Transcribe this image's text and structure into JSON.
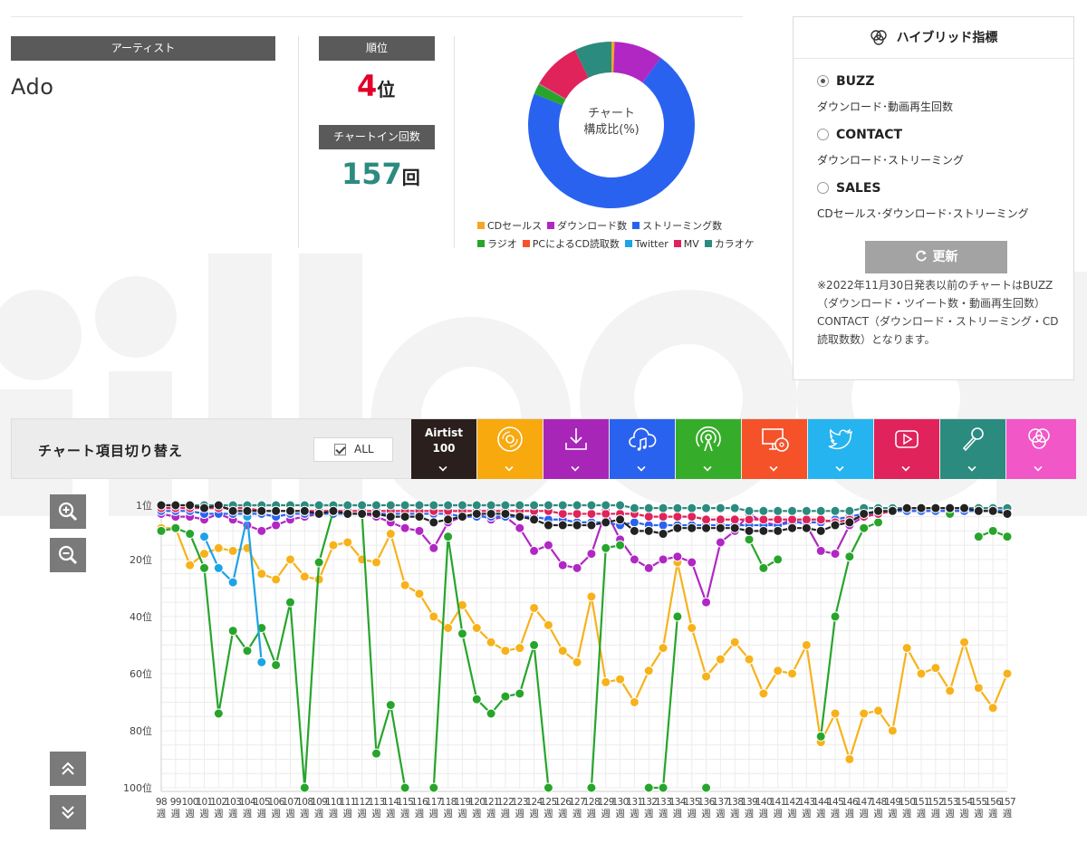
{
  "artist": {
    "label": "アーティスト",
    "name": "Ado"
  },
  "rank": {
    "label": "順位",
    "value": "4",
    "unit": "位"
  },
  "chartin": {
    "label": "チャートイン回数",
    "value": "157",
    "unit": "回"
  },
  "donut": {
    "center_line1": "チャート",
    "center_line2": "構成比(%)",
    "slices": [
      {
        "name": "CDセールス",
        "value": 0.6,
        "color": "#f5a623"
      },
      {
        "name": "ダウンロード数",
        "value": 9.5,
        "color": "#b127c4"
      },
      {
        "name": "ストリーミング数",
        "value": 71,
        "color": "#2a62f0"
      },
      {
        "name": "ラジオ",
        "value": 2,
        "color": "#27a52b"
      },
      {
        "name": "PCによるCD読取数",
        "value": 0.1,
        "color": "#f5522a"
      },
      {
        "name": "Twitter",
        "value": 0.1,
        "color": "#1ea3e6"
      },
      {
        "name": "MV",
        "value": 9.5,
        "color": "#e0235a"
      },
      {
        "name": "カラオケ",
        "value": 7.2,
        "color": "#2b8b7f"
      }
    ],
    "legend_row1": [
      {
        "name": "CDセールス",
        "color": "#f5a623"
      },
      {
        "name": "ダウンロード数",
        "color": "#b127c4"
      },
      {
        "name": "ストリーミング数",
        "color": "#2a62f0"
      }
    ],
    "legend_row2": [
      {
        "name": "ラジオ",
        "color": "#27a52b"
      },
      {
        "name": "PCによるCD読取数",
        "color": "#f5522a"
      },
      {
        "name": "Twitter",
        "color": "#1ea3e6"
      },
      {
        "name": "MV",
        "color": "#e0235a"
      },
      {
        "name": "カラオケ",
        "color": "#2b8b7f"
      }
    ]
  },
  "hybrid": {
    "title": "ハイブリッド指標",
    "options": [
      {
        "label": "BUZZ",
        "desc": "ダウンロード･動画再生回数",
        "selected": true
      },
      {
        "label": "CONTACT",
        "desc": "ダウンロード･ストリーミング",
        "selected": false
      },
      {
        "label": "SALES",
        "desc": "CDセールス･ダウンロード･ストリーミング",
        "selected": false
      }
    ],
    "update_label": "更新",
    "note": "※2022年11月30日発表以前のチャートはBUZZ（ダウンロード・ツイート数・動画再生回数）CONTACT（ダウンロード・ストリーミング・CD読取数数）となります。"
  },
  "toolbar": {
    "title": "チャート項目切り替え",
    "all_label": "ALL",
    "airtist_line1": "Airtist",
    "airtist_line2": "100",
    "categories": [
      {
        "name": "airtist",
        "color": "#2a1f1c"
      },
      {
        "name": "cd",
        "color": "#f7a90e"
      },
      {
        "name": "download",
        "color": "#a726b7"
      },
      {
        "name": "streaming",
        "color": "#2a62f0"
      },
      {
        "name": "radio",
        "color": "#36ad2a"
      },
      {
        "name": "pc-cd",
        "color": "#f5522a"
      },
      {
        "name": "twitter",
        "color": "#25b4f0"
      },
      {
        "name": "mv",
        "color": "#e0235a"
      },
      {
        "name": "karaoke",
        "color": "#2b8b7f"
      },
      {
        "name": "hybrid",
        "color": "#f257c8"
      }
    ]
  },
  "chart_data": {
    "type": "line",
    "x": [
      98,
      99,
      100,
      101,
      102,
      103,
      104,
      105,
      106,
      107,
      108,
      109,
      110,
      111,
      112,
      113,
      114,
      115,
      116,
      117,
      118,
      119,
      120,
      121,
      122,
      123,
      124,
      125,
      126,
      127,
      128,
      129,
      130,
      131,
      132,
      133,
      134,
      135,
      136,
      137,
      138,
      139,
      140,
      141,
      142,
      143,
      144,
      145,
      146,
      147,
      148,
      149,
      150,
      151,
      152,
      153,
      154,
      155,
      156,
      157
    ],
    "x_suffix": "週",
    "y_ticks": [
      "1位",
      "20位",
      "40位",
      "60位",
      "80位",
      "100位"
    ],
    "y_tick_values": [
      1,
      20,
      40,
      60,
      80,
      100
    ],
    "ylim": [
      1,
      100
    ],
    "y_inverted": true,
    "series": [
      {
        "name": "CDセールス",
        "color": "#f7b21b",
        "values": [
          9,
          9,
          22,
          18,
          16,
          17,
          16,
          25,
          27,
          20,
          26,
          27,
          15,
          14,
          20,
          21,
          11,
          29,
          32,
          40,
          44,
          36,
          44,
          49,
          52,
          51,
          37,
          43,
          52,
          56,
          33,
          63,
          62,
          70,
          59,
          51,
          21,
          44,
          61,
          55,
          49,
          55,
          67,
          59,
          60,
          50,
          84,
          74,
          90,
          74,
          73,
          80,
          51,
          60,
          58,
          66,
          49,
          65,
          72,
          60
        ]
      },
      {
        "name": "ダウンロード数",
        "color": "#b127c4",
        "values": [
          4,
          5,
          5,
          6,
          4,
          6,
          8,
          10,
          8,
          6,
          5,
          4,
          3,
          4,
          4,
          5,
          7,
          9,
          10,
          16,
          7,
          5,
          4,
          6,
          5,
          9,
          17,
          15,
          22,
          23,
          18,
          3,
          13,
          20,
          23,
          20,
          19,
          21,
          35,
          14,
          10,
          4,
          7,
          8,
          6,
          8,
          17,
          18,
          8,
          5,
          4,
          3,
          3,
          3,
          3,
          3,
          3,
          3,
          3,
          3
        ]
      },
      {
        "name": "ストリーミング数",
        "color": "#2a62f0",
        "values": [
          3,
          3,
          3,
          4,
          4,
          4,
          4,
          4,
          5,
          4,
          4,
          4,
          4,
          4,
          4,
          4,
          4,
          4,
          4,
          4,
          4,
          5,
          5,
          5,
          5,
          5,
          5,
          6,
          6,
          7,
          7,
          7,
          8,
          7,
          8,
          8,
          8,
          8,
          8,
          8,
          8,
          8,
          8,
          8,
          7,
          7,
          7,
          6,
          5,
          4,
          4,
          3,
          3,
          3,
          3,
          3,
          3,
          3,
          3,
          3
        ]
      },
      {
        "name": "ラジオ",
        "color": "#27a52b",
        "values": [
          10,
          9,
          11,
          23,
          74,
          45,
          52,
          44,
          57,
          35,
          100,
          21,
          3,
          4,
          4,
          88,
          71,
          100,
          null,
          100,
          12,
          46,
          69,
          74,
          68,
          67,
          50,
          100,
          null,
          null,
          100,
          16,
          15,
          null,
          100,
          100,
          40,
          null,
          100,
          null,
          null,
          13,
          23,
          20,
          null,
          null,
          82,
          40,
          19,
          9,
          7,
          null,
          null,
          null,
          null,
          4,
          null,
          12,
          10,
          12
        ]
      },
      {
        "name": "Twitter",
        "color": "#1ea3e6",
        "values": [
          null,
          null,
          null,
          12,
          23,
          28,
          5,
          56,
          null,
          null,
          null,
          null,
          null,
          null,
          null,
          null,
          null,
          null,
          null,
          null,
          null,
          null,
          null,
          null,
          null,
          null,
          null,
          null,
          null,
          null,
          null,
          null,
          null,
          null,
          null,
          null,
          null,
          null,
          null,
          null,
          null,
          null,
          null,
          null,
          null,
          null,
          null,
          null,
          null,
          null,
          null,
          null,
          null,
          null,
          null,
          null,
          null,
          null,
          null,
          null
        ]
      },
      {
        "name": "MV",
        "color": "#e0235a",
        "values": [
          2,
          2,
          2,
          2,
          2,
          2,
          2,
          3,
          3,
          3,
          3,
          3,
          3,
          3,
          3,
          3,
          3,
          3,
          3,
          3,
          3,
          3,
          3,
          3,
          3,
          3,
          3,
          3,
          4,
          4,
          4,
          4,
          4,
          4,
          5,
          5,
          5,
          5,
          6,
          6,
          6,
          6,
          6,
          6,
          6,
          6,
          6,
          7,
          6,
          5,
          4,
          3,
          2,
          2,
          2,
          2,
          2,
          2,
          2,
          2
        ]
      },
      {
        "name": "カラオケ",
        "color": "#2b8b7f",
        "values": [
          1,
          1,
          1,
          1,
          1,
          1,
          1,
          1,
          1,
          1,
          1,
          1,
          1,
          1,
          1,
          1,
          1,
          1,
          1,
          1,
          1,
          1,
          1,
          1,
          1,
          1,
          1,
          1,
          1,
          1,
          1,
          1,
          1,
          2,
          2,
          2,
          2,
          2,
          2,
          2,
          2,
          3,
          3,
          3,
          3,
          3,
          3,
          3,
          3,
          2,
          2,
          2,
          2,
          2,
          2,
          2,
          2,
          2,
          2,
          2
        ]
      },
      {
        "name": "Airtist 100",
        "color": "#222222",
        "values": [
          1,
          1,
          1,
          2,
          1,
          3,
          3,
          3,
          3,
          3,
          3,
          4,
          3,
          4,
          4,
          4,
          5,
          5,
          5,
          7,
          6,
          5,
          4,
          4,
          4,
          5,
          6,
          8,
          8,
          8,
          8,
          7,
          6,
          10,
          10,
          11,
          9,
          9,
          9,
          9,
          9,
          10,
          10,
          10,
          9,
          9,
          10,
          8,
          7,
          4,
          3,
          3,
          2,
          2,
          2,
          2,
          2,
          3,
          3,
          4
        ]
      }
    ]
  }
}
